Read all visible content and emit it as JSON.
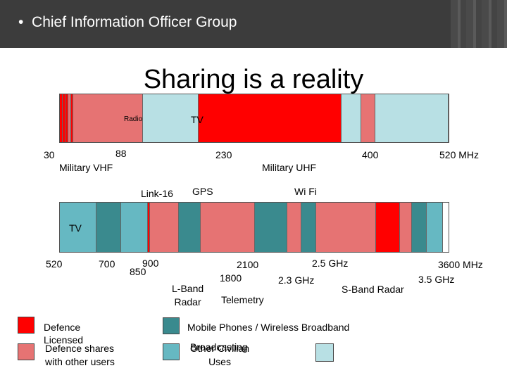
{
  "header": {
    "bullet": "•",
    "text": "Chief Information Officer Group"
  },
  "title": "Sharing is a reality",
  "colors": {
    "red": "#ff0000",
    "pink": "#e67373",
    "teal": "#3a8a8e",
    "light_teal": "#66b8c2",
    "pale_blue": "#b8e0e4",
    "header_bg": "#3c3c3c"
  },
  "top_band": {
    "labels": {
      "radio": "Radio",
      "tv": "TV",
      "f30": "30",
      "f88": "88",
      "f230": "230",
      "f400": "400",
      "f520": "520 MHz",
      "military_vhf": "Military VHF",
      "military_uhf": "Military UHF",
      "link16": "Link-16",
      "gps": "GPS",
      "wifi": "Wi Fi"
    },
    "segments": [
      "red",
      "red",
      "red",
      "pink",
      "red",
      "pink",
      "pale_blue",
      "red",
      "pale_blue",
      "pink",
      "pale_blue"
    ]
  },
  "bottom_band": {
    "labels": {
      "tv": "TV",
      "f520": "520",
      "f700": "700",
      "f900": "900",
      "f850": "850",
      "f2100": "2100",
      "f1800": "1800",
      "f2_5": "2.5 GHz",
      "f2_3": "2.3 GHz",
      "f3600": "3600 MHz",
      "f3_5": "3.5 GHz",
      "lband_radar": "L-Band\nRadar",
      "telemetry": "Telemetry",
      "sband_radar": "S-Band Radar"
    },
    "segments": [
      "light_teal",
      "teal",
      "light_teal",
      "red",
      "pink",
      "teal",
      "pink",
      "teal",
      "pink",
      "teal",
      "pink",
      "red",
      "pink",
      "teal",
      "light_teal"
    ]
  },
  "legend": {
    "defence_licensed": "Defence\nLicensed",
    "defence_shares": "Defence shares\nwith other users",
    "mobile": "Mobile Phones / Wireless Broadband",
    "broadcasting": "Broadcasting",
    "other_civilian": "Other Civilian\nUses"
  }
}
